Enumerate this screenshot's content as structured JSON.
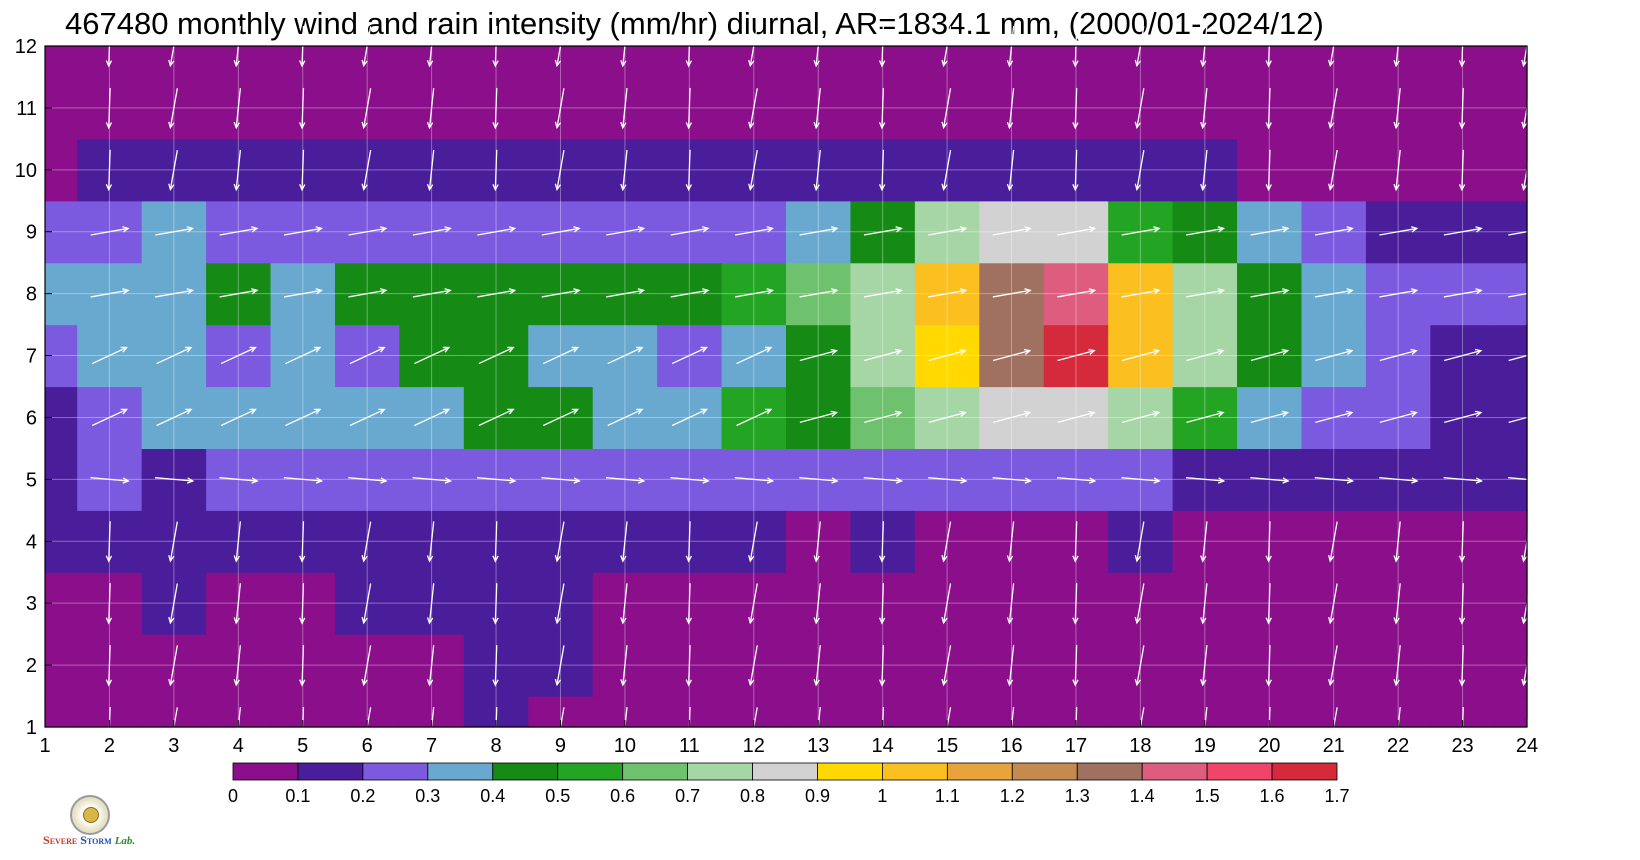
{
  "title": "467480 monthly wind and rain intensity (mm/hr) diurnal, AR=1834.1 mm, (2000/01-2024/12)",
  "logo_text": {
    "s1": "S",
    "s1rest": "EVERE",
    "s2": "S",
    "s2rest": "TORM",
    "lab": "Lab."
  },
  "chart_data": {
    "type": "heatmap",
    "title": "467480 monthly wind and rain intensity (mm/hr) diurnal, AR=1834.1 mm, (2000/01-2024/12)",
    "xlabel": "",
    "ylabel": "",
    "xlim": [
      1,
      24
    ],
    "ylim": [
      1,
      12
    ],
    "x_ticks": [
      1,
      2,
      3,
      4,
      5,
      6,
      7,
      8,
      9,
      10,
      11,
      12,
      13,
      14,
      15,
      16,
      17,
      18,
      19,
      20,
      21,
      22,
      23,
      24
    ],
    "y_ticks": [
      1,
      2,
      3,
      4,
      5,
      6,
      7,
      8,
      9,
      10,
      11,
      12
    ],
    "grid": true,
    "colorbar": {
      "levels": [
        0,
        0.1,
        0.2,
        0.3,
        0.4,
        0.5,
        0.6,
        0.7,
        0.8,
        0.9,
        1,
        1.1,
        1.2,
        1.3,
        1.4,
        1.5,
        1.6,
        1.7
      ],
      "labels": [
        "0",
        "0.1",
        "0.2",
        "0.3",
        "0.4",
        "0.5",
        "0.6",
        "0.7",
        "0.8",
        "0.9",
        "1",
        "1.1",
        "1.2",
        "1.3",
        "1.4",
        "1.5",
        "1.6",
        "1.7"
      ],
      "colors": [
        "#8b0f8b",
        "#4a1e9a",
        "#7b5ae0",
        "#6aa9cf",
        "#158a15",
        "#23a523",
        "#6ec26e",
        "#a6d6a6",
        "#d2d2d2",
        "#ffd900",
        "#fbbf1f",
        "#e8a33a",
        "#c48a4e",
        "#a07060",
        "#de5c7d",
        "#f04468",
        "#d42a3c"
      ]
    },
    "rain_rows": [
      {
        "month": 1,
        "values": [
          0.05,
          0.05,
          0.05,
          0.05,
          0.05,
          0.05,
          0.05,
          0.15,
          0.05,
          0.05,
          0.05,
          0.05,
          0.05,
          0.05,
          0.05,
          0.05,
          0.05,
          0.05,
          0.05,
          0.05,
          0.05,
          0.05,
          0.05,
          0.05
        ]
      },
      {
        "month": 2,
        "values": [
          0.05,
          0.05,
          0.05,
          0.05,
          0.05,
          0.05,
          0.05,
          0.15,
          0.15,
          0.05,
          0.05,
          0.05,
          0.05,
          0.05,
          0.05,
          0.05,
          0.05,
          0.05,
          0.05,
          0.05,
          0.05,
          0.05,
          0.05,
          0.05
        ]
      },
      {
        "month": 3,
        "values": [
          0.05,
          0.05,
          0.15,
          0.05,
          0.05,
          0.15,
          0.15,
          0.15,
          0.15,
          0.05,
          0.05,
          0.05,
          0.05,
          0.05,
          0.05,
          0.05,
          0.05,
          0.05,
          0.05,
          0.05,
          0.05,
          0.05,
          0.05,
          0.05
        ]
      },
      {
        "month": 4,
        "values": [
          0.15,
          0.15,
          0.15,
          0.15,
          0.15,
          0.15,
          0.15,
          0.15,
          0.15,
          0.15,
          0.15,
          0.15,
          0.05,
          0.15,
          0.05,
          0.05,
          0.05,
          0.15,
          0.05,
          0.05,
          0.05,
          0.05,
          0.05,
          0.05
        ]
      },
      {
        "month": 5,
        "values": [
          0.15,
          0.25,
          0.15,
          0.25,
          0.25,
          0.25,
          0.25,
          0.25,
          0.25,
          0.25,
          0.25,
          0.25,
          0.25,
          0.25,
          0.25,
          0.25,
          0.25,
          0.25,
          0.15,
          0.15,
          0.15,
          0.15,
          0.15,
          0.15
        ]
      },
      {
        "month": 6,
        "values": [
          0.15,
          0.25,
          0.35,
          0.35,
          0.35,
          0.35,
          0.35,
          0.45,
          0.45,
          0.35,
          0.35,
          0.55,
          0.45,
          0.65,
          0.75,
          0.85,
          0.85,
          0.75,
          0.55,
          0.35,
          0.25,
          0.25,
          0.15,
          0.15
        ]
      },
      {
        "month": 7,
        "values": [
          0.25,
          0.35,
          0.35,
          0.25,
          0.35,
          0.25,
          0.45,
          0.45,
          0.35,
          0.35,
          0.25,
          0.35,
          0.45,
          0.75,
          0.95,
          1.35,
          1.65,
          1.05,
          0.75,
          0.45,
          0.35,
          0.25,
          0.15,
          0.15
        ]
      },
      {
        "month": 8,
        "values": [
          0.35,
          0.35,
          0.35,
          0.45,
          0.35,
          0.45,
          0.45,
          0.45,
          0.45,
          0.45,
          0.45,
          0.55,
          0.65,
          0.75,
          1.05,
          1.35,
          1.45,
          1.05,
          0.75,
          0.45,
          0.35,
          0.25,
          0.25,
          0.25
        ]
      },
      {
        "month": 9,
        "values": [
          0.25,
          0.25,
          0.35,
          0.25,
          0.25,
          0.25,
          0.25,
          0.25,
          0.25,
          0.25,
          0.25,
          0.25,
          0.35,
          0.45,
          0.75,
          0.85,
          0.85,
          0.55,
          0.45,
          0.35,
          0.25,
          0.15,
          0.15,
          0.15
        ]
      },
      {
        "month": 10,
        "values": [
          0.05,
          0.15,
          0.15,
          0.15,
          0.15,
          0.15,
          0.15,
          0.15,
          0.15,
          0.15,
          0.15,
          0.15,
          0.15,
          0.15,
          0.15,
          0.15,
          0.15,
          0.15,
          0.15,
          0.05,
          0.05,
          0.05,
          0.05,
          0.05
        ]
      },
      {
        "month": 11,
        "values": [
          0.05,
          0.05,
          0.05,
          0.05,
          0.05,
          0.05,
          0.05,
          0.05,
          0.05,
          0.05,
          0.05,
          0.05,
          0.05,
          0.05,
          0.05,
          0.05,
          0.05,
          0.05,
          0.05,
          0.05,
          0.05,
          0.05,
          0.05,
          0.05
        ]
      },
      {
        "month": 12,
        "values": [
          0.05,
          0.05,
          0.05,
          0.05,
          0.05,
          0.05,
          0.05,
          0.05,
          0.05,
          0.05,
          0.05,
          0.05,
          0.05,
          0.05,
          0.05,
          0.05,
          0.05,
          0.05,
          0.05,
          0.05,
          0.05,
          0.05,
          0.05,
          0.05
        ]
      }
    ],
    "wind_note": "white arrows: prevailing wind direction per hour/month",
    "wind_colour": "#ffffff"
  }
}
